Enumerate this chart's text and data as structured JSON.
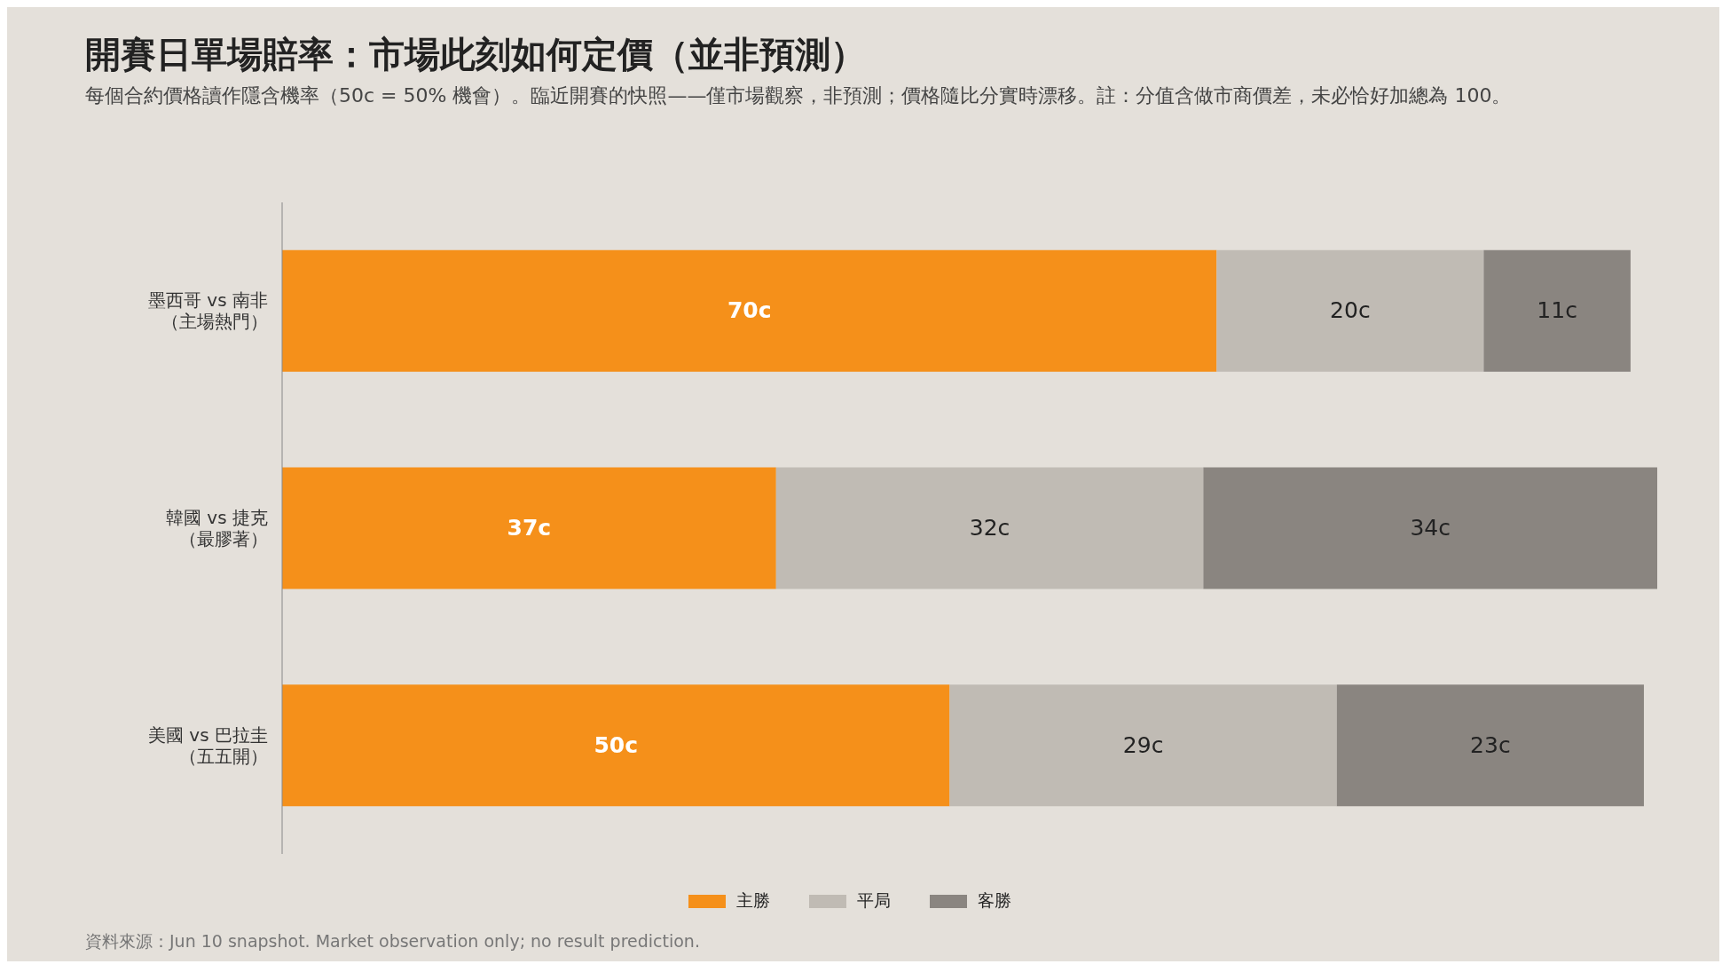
{
  "chart_data": {
    "type": "bar",
    "orientation": "horizontal",
    "stacked": true,
    "title": "開賽日單場賠率：市場此刻如何定價（並非預測）",
    "subtitle": "每個合約價格讀作隱含機率（50c = 50% 機會）。臨近開賽的快照——僅市場觀察，非預測；價格隨比分實時漂移。註：分值含做市商價差，未必恰好加總為 100。",
    "categories": [
      "墨西哥 vs 南非（主場熱門）",
      "韓國 vs 捷克（最膠著）",
      "美國 vs 巴拉圭（五五開）"
    ],
    "series": [
      {
        "name": "主勝",
        "color": "#f5901a",
        "values": [
          70,
          37,
          50
        ],
        "value_labels": [
          "70c",
          "37c",
          "50c"
        ]
      },
      {
        "name": "平局",
        "color": "#c0bbb4",
        "values": [
          20,
          32,
          29
        ],
        "value_labels": [
          "20c",
          "32c",
          "29c"
        ]
      },
      {
        "name": "客勝",
        "color": "#8a8580",
        "values": [
          11,
          34,
          23
        ],
        "value_labels": [
          "11c",
          "34c",
          "23c"
        ]
      }
    ],
    "xlim": [
      0,
      103
    ],
    "tick_labels": "y",
    "legend": "bottom",
    "grid": false,
    "annotations": [
      "資料來源：Jun 10 snapshot. Market observation only; no result prediction."
    ]
  }
}
